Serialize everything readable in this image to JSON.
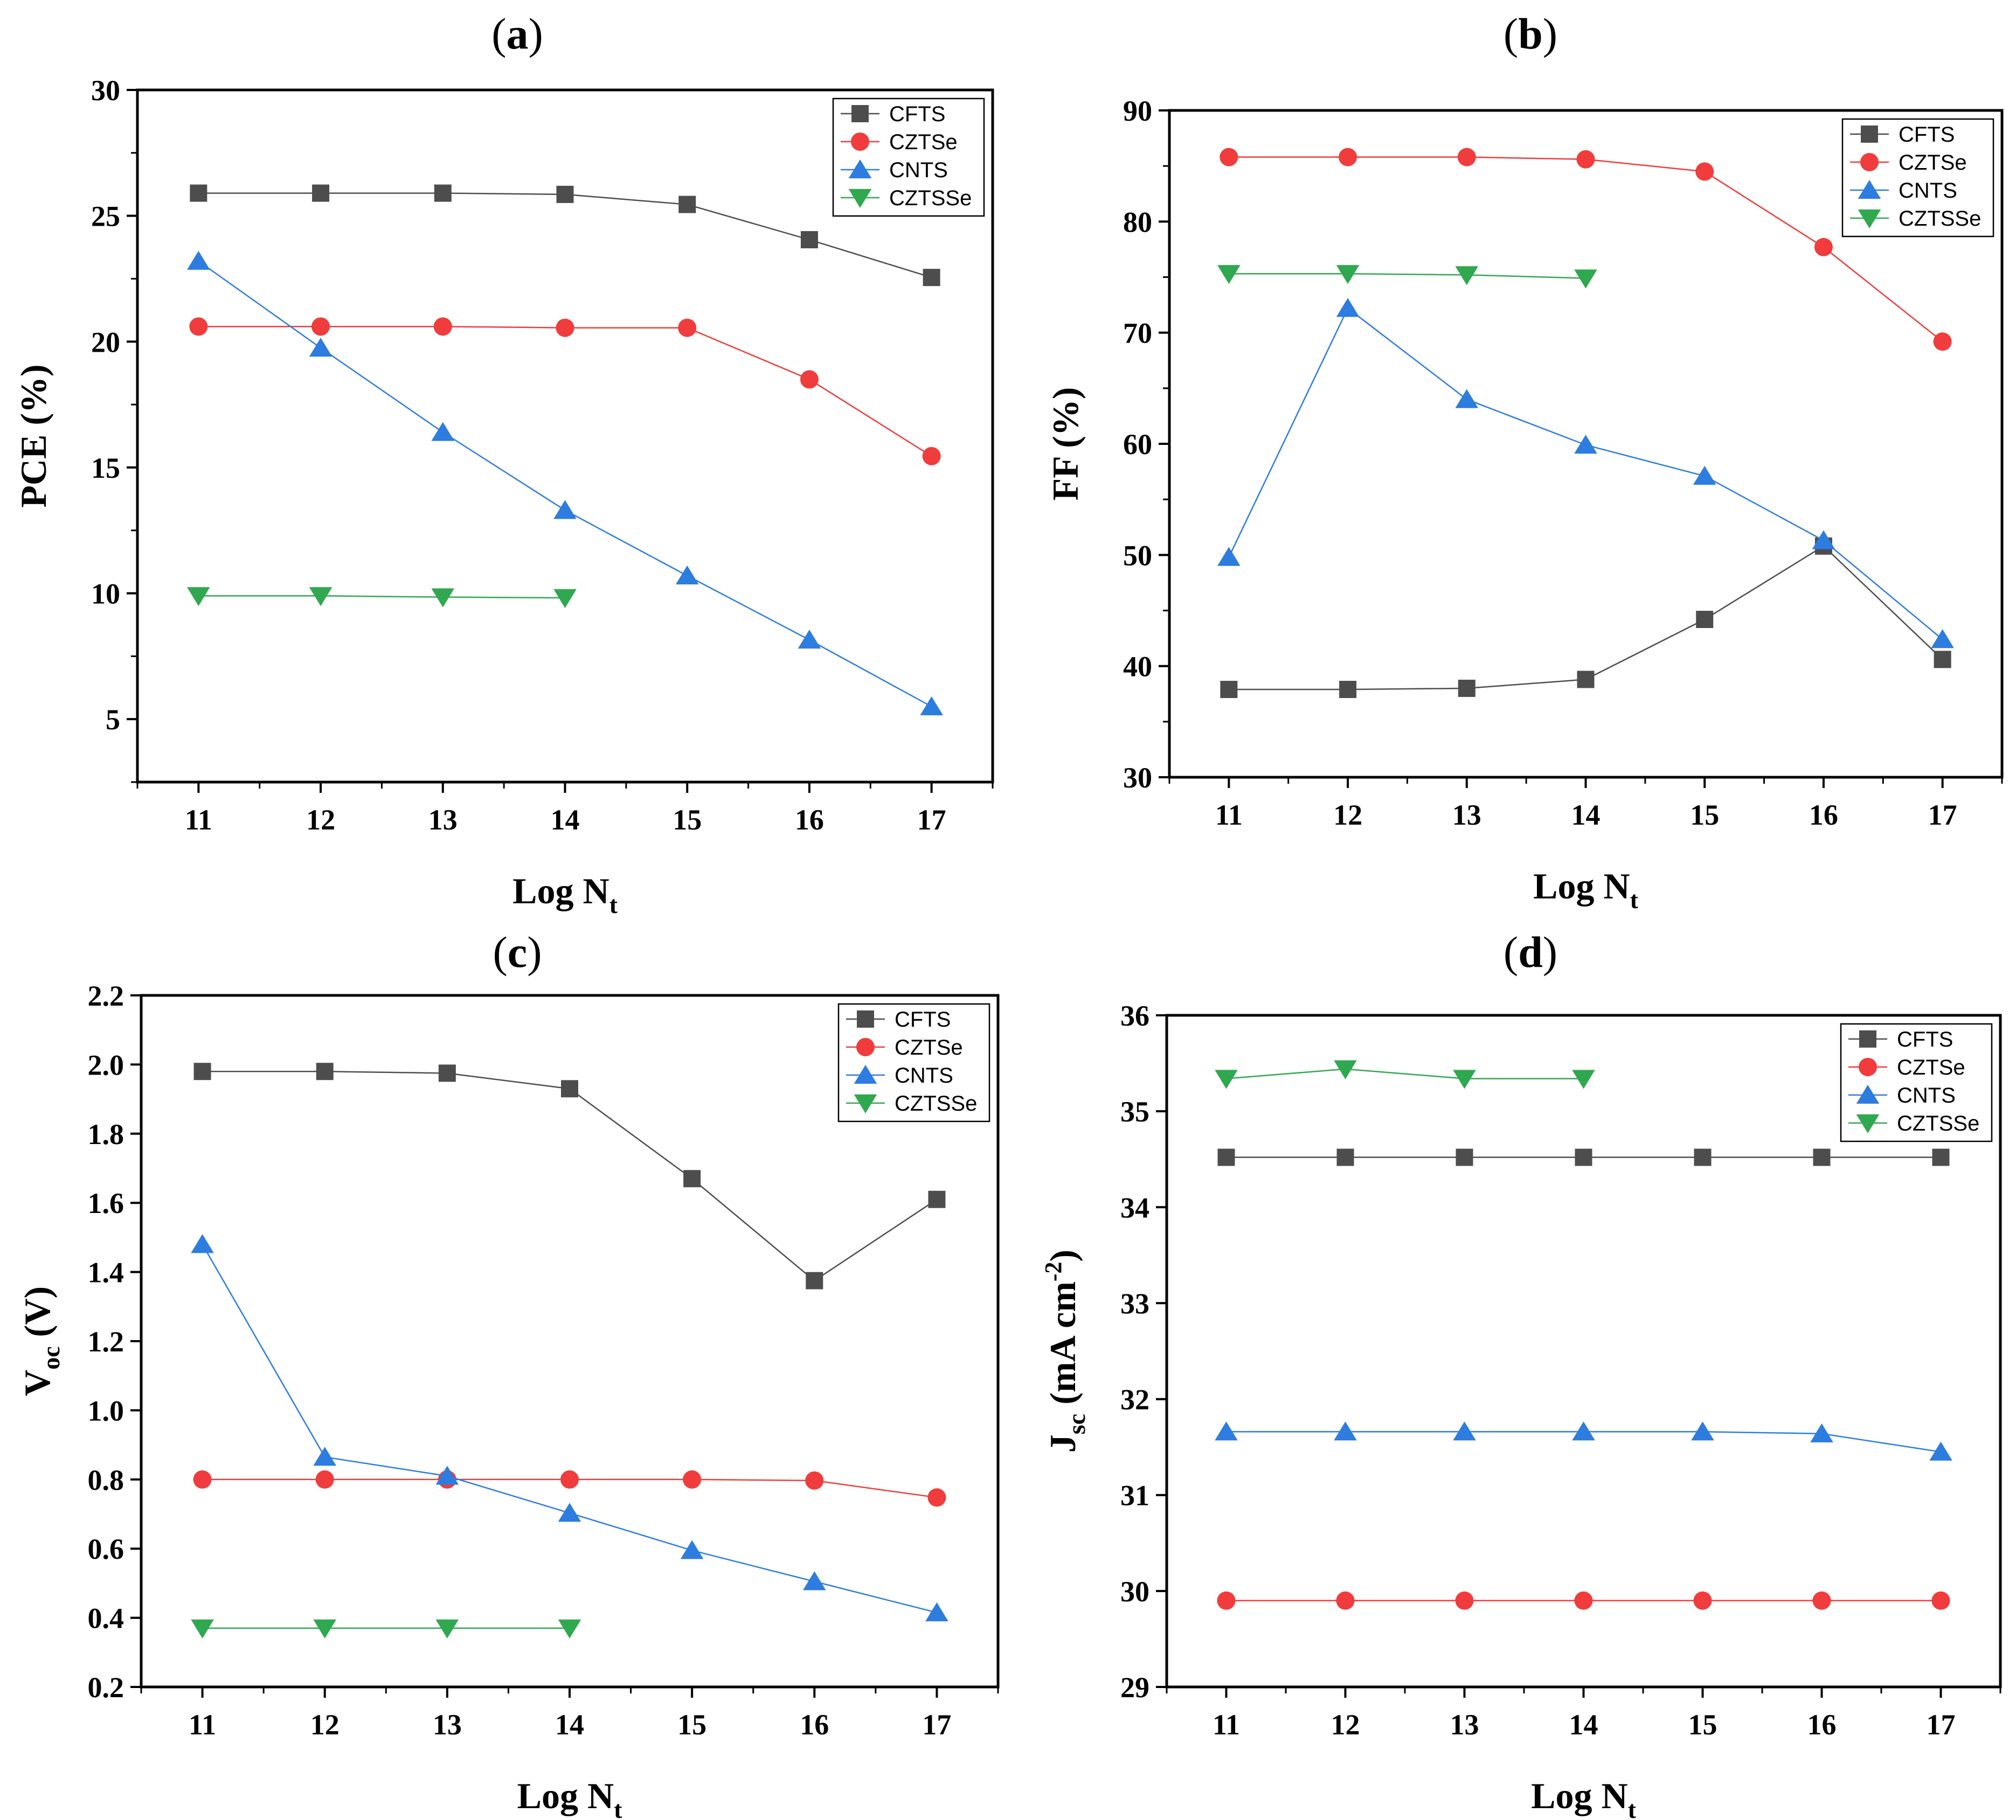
{
  "chart_data": [
    {
      "type": "line",
      "panel_label": "a",
      "title": "(a)",
      "xlabel": "Log N",
      "xlabel_sub": "t",
      "ylabel": "PCE (%)",
      "x": [
        11,
        12,
        13,
        14,
        15,
        16,
        17
      ],
      "xlim": [
        10.5,
        17.5
      ],
      "ylim": [
        2.5,
        30
      ],
      "yticks": [
        5,
        10,
        15,
        20,
        25,
        30
      ],
      "yminor": true,
      "ytick_decimals": 0,
      "legend_position": "top-right",
      "series": [
        {
          "name": "CFTS",
          "color": "#4d4d4d",
          "marker": "square",
          "values": [
            25.9,
            25.9,
            25.9,
            25.85,
            25.45,
            24.05,
            22.55
          ]
        },
        {
          "name": "CZTSe",
          "color": "#f03c3c",
          "marker": "circle",
          "values": [
            20.6,
            20.6,
            20.6,
            20.55,
            20.55,
            18.5,
            15.45
          ]
        },
        {
          "name": "CNTS",
          "color": "#2d7ce0",
          "marker": "triangle-up",
          "values": [
            23.2,
            19.75,
            16.4,
            13.3,
            10.7,
            8.15,
            5.5
          ]
        },
        {
          "name": "CZTSSe",
          "color": "#2fa84f",
          "marker": "triangle-down",
          "values": [
            9.9,
            9.9,
            9.85,
            9.82,
            null,
            null,
            null
          ]
        }
      ]
    },
    {
      "type": "line",
      "panel_label": "b",
      "title": "(b)",
      "xlabel": "Log N",
      "xlabel_sub": "t",
      "ylabel": "FF (%)",
      "x": [
        11,
        12,
        13,
        14,
        15,
        16,
        17
      ],
      "xlim": [
        10.5,
        17.5
      ],
      "ylim": [
        30,
        90
      ],
      "yticks": [
        30,
        40,
        50,
        60,
        70,
        80,
        90
      ],
      "yminor": true,
      "ytick_decimals": 0,
      "legend_position": "top-right",
      "series": [
        {
          "name": "CFTS",
          "color": "#4d4d4d",
          "marker": "square",
          "values": [
            37.9,
            37.9,
            38.0,
            38.8,
            44.2,
            50.8,
            40.6
          ]
        },
        {
          "name": "CZTSe",
          "color": "#f03c3c",
          "marker": "circle",
          "values": [
            85.8,
            85.8,
            85.8,
            85.6,
            84.5,
            77.7,
            69.2
          ]
        },
        {
          "name": "CNTS",
          "color": "#2d7ce0",
          "marker": "triangle-up",
          "values": [
            49.8,
            72.2,
            64.0,
            59.9,
            57.1,
            51.3,
            42.4
          ]
        },
        {
          "name": "CZTSSe",
          "color": "#2fa84f",
          "marker": "triangle-down",
          "values": [
            75.3,
            75.3,
            75.2,
            74.9,
            null,
            null,
            null
          ]
        }
      ]
    },
    {
      "type": "line",
      "panel_label": "c",
      "title": "(c)",
      "xlabel": "Log N",
      "xlabel_sub": "t",
      "ylabel": "V",
      "ylabel_sub": "oc",
      "ylabel_suffix": " (V)",
      "x": [
        11,
        12,
        13,
        14,
        15,
        16,
        17
      ],
      "xlim": [
        10.5,
        17.5
      ],
      "ylim": [
        0.2,
        2.2
      ],
      "yticks": [
        0.2,
        0.4,
        0.6,
        0.8,
        1.0,
        1.2,
        1.4,
        1.6,
        1.8,
        2.0,
        2.2
      ],
      "yminor": false,
      "ytick_decimals": 1,
      "legend_position": "top-right",
      "series": [
        {
          "name": "CFTS",
          "color": "#4d4d4d",
          "marker": "square",
          "values": [
            1.98,
            1.98,
            1.975,
            1.93,
            1.67,
            1.375,
            1.61
          ]
        },
        {
          "name": "CZTSe",
          "color": "#f03c3c",
          "marker": "circle",
          "values": [
            0.8,
            0.8,
            0.8,
            0.8,
            0.8,
            0.797,
            0.748
          ]
        },
        {
          "name": "CNTS",
          "color": "#2d7ce0",
          "marker": "triangle-up",
          "values": [
            1.48,
            0.865,
            0.81,
            0.703,
            0.595,
            0.505,
            0.415
          ]
        },
        {
          "name": "CZTSSe",
          "color": "#2fa84f",
          "marker": "triangle-down",
          "values": [
            0.37,
            0.37,
            0.37,
            0.37,
            null,
            null,
            null
          ]
        }
      ]
    },
    {
      "type": "line",
      "panel_label": "d",
      "title": "(d)",
      "xlabel": "Log N",
      "xlabel_sub": "t",
      "ylabel": "J",
      "ylabel_sub": "sc",
      "ylabel_suffix": " (mA cm",
      "ylabel_sup": "-2",
      "ylabel_end": ")",
      "x": [
        11,
        12,
        13,
        14,
        15,
        16,
        17
      ],
      "xlim": [
        10.5,
        17.5
      ],
      "ylim": [
        29,
        36
      ],
      "yticks": [
        29,
        30,
        31,
        32,
        33,
        34,
        35,
        36
      ],
      "yminor": false,
      "ytick_decimals": 0,
      "legend_position": "top-right",
      "series": [
        {
          "name": "CFTS",
          "color": "#4d4d4d",
          "marker": "square",
          "values": [
            34.52,
            34.52,
            34.52,
            34.52,
            34.52,
            34.52,
            34.52
          ]
        },
        {
          "name": "CZTSe",
          "color": "#f03c3c",
          "marker": "circle",
          "values": [
            29.9,
            29.9,
            29.9,
            29.9,
            29.9,
            29.9,
            29.9
          ]
        },
        {
          "name": "CNTS",
          "color": "#2d7ce0",
          "marker": "triangle-up",
          "values": [
            31.66,
            31.66,
            31.66,
            31.66,
            31.66,
            31.64,
            31.45
          ]
        },
        {
          "name": "CZTSSe",
          "color": "#2fa84f",
          "marker": "triangle-down",
          "values": [
            35.34,
            35.44,
            35.34,
            35.34,
            null,
            null,
            null
          ]
        }
      ]
    }
  ]
}
